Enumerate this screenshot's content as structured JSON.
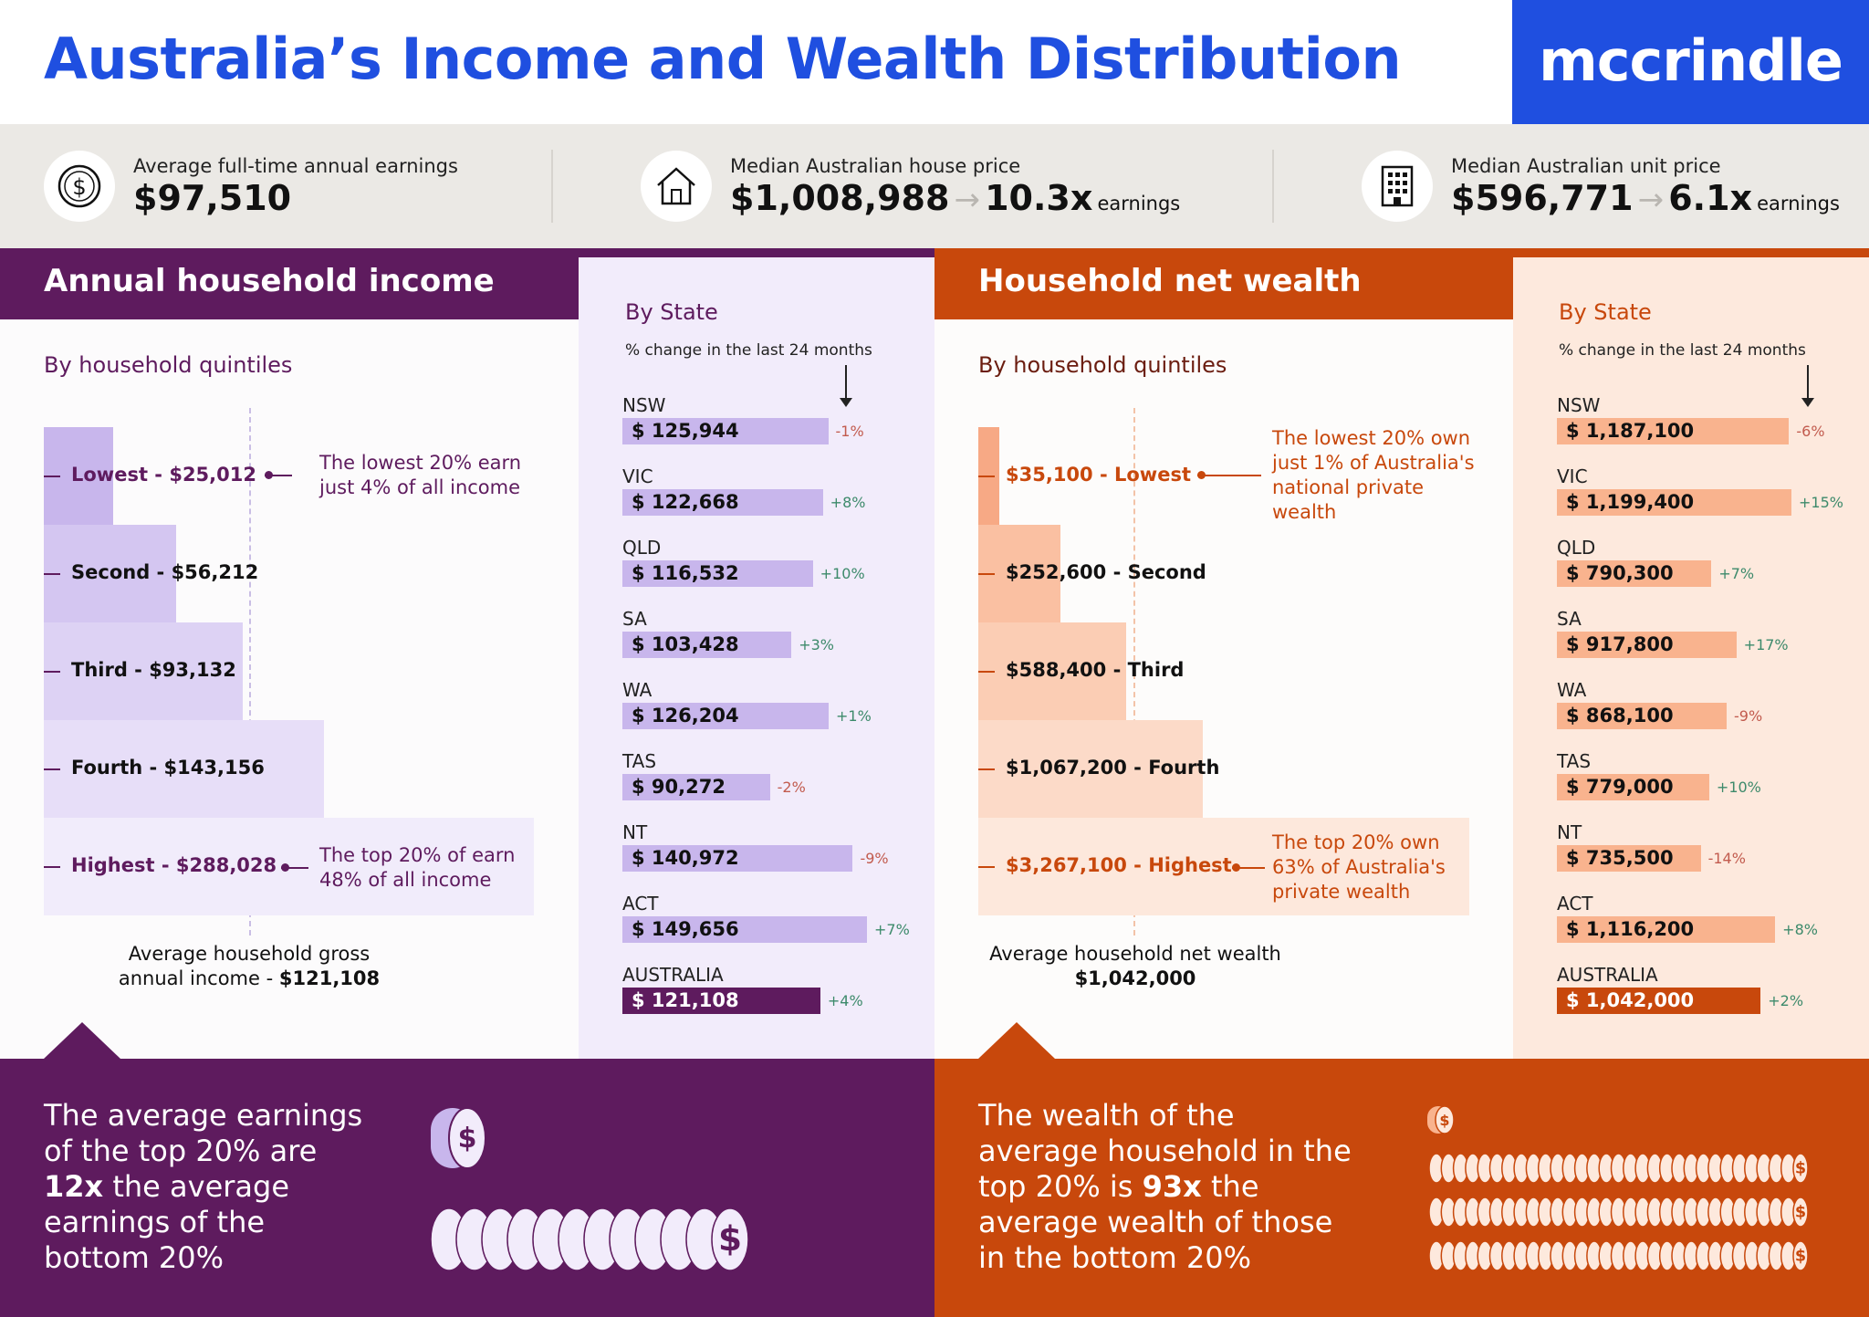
{
  "header": {
    "title": "Australia’s Income and Wealth Distribution",
    "brand": "mccrindle"
  },
  "stats": [
    {
      "icon": "dollar-coin-icon",
      "label": "Average full-time annual earnings",
      "value": "$97,510"
    },
    {
      "icon": "house-icon",
      "label": "Median Australian house price",
      "value": "$1,008,988",
      "multiplier": "10.3x",
      "suffix": "earnings"
    },
    {
      "icon": "apartment-building-icon",
      "label": "Median Australian unit price",
      "value": "$596,771",
      "multiplier": "6.1x",
      "suffix": "earnings"
    }
  ],
  "colors": {
    "purple": "#5e1b5e",
    "purple_bar": "#c8b6ec",
    "orange": "#c8480c",
    "orange_bar": "#f9b38e",
    "blue": "#1f4fe0"
  },
  "income": {
    "heading": "Annual household income",
    "subheading": "By household quintiles",
    "note_lowest": "The lowest 20% earn just 4% of all income",
    "note_highest": "The top 20% of earn 48% of all income",
    "avg_line1": "Average household gross",
    "avg_line2_prefix": "annual income - ",
    "avg_value": "$121,108",
    "by_state_title": "By State",
    "by_state_sub": "% change in the last 24 months",
    "bottom_parts": [
      "The average earnings of the top 20% are ",
      "12x",
      " the average earnings of the bottom 20%"
    ]
  },
  "wealth": {
    "heading": "Household net wealth",
    "subheading": "By household quintiles",
    "note_lowest": "The lowest 20% own just 1% of Australia's national private wealth",
    "note_highest": "The top 20% own 63% of Australia's private wealth",
    "avg_line1": "Average household net wealth",
    "avg_value": "$1,042,000",
    "by_state_title": "By State",
    "by_state_sub": "% change in the last 24 months",
    "bottom_parts": [
      "The wealth of the average household in the top 20% is ",
      "93x",
      " the average wealth of those in the bottom 20%"
    ]
  },
  "chart_data": [
    {
      "type": "bar",
      "title": "Annual household income",
      "subtitle": "By household quintiles",
      "categories": [
        "Lowest",
        "Second",
        "Third",
        "Fourth",
        "Highest"
      ],
      "labels": [
        "Lowest - $25,012",
        "Second - $56,212",
        "Third - $93,132",
        "Fourth - $143,156",
        "Highest - $288,028"
      ],
      "values": [
        25012,
        56212,
        93132,
        143156,
        288028
      ],
      "reference_line": 121108
    },
    {
      "type": "bar",
      "title": "By State",
      "subtitle": "% change in the last 24 months",
      "categories": [
        "NSW",
        "VIC",
        "QLD",
        "SA",
        "WA",
        "TAS",
        "NT",
        "ACT",
        "AUSTRALIA"
      ],
      "labels": [
        "$ 125,944",
        "$ 122,668",
        "$ 116,532",
        "$ 103,428",
        "$ 126,204",
        "$ 90,272",
        "$ 140,972",
        "$ 149,656",
        "$ 121,108"
      ],
      "values": [
        125944,
        122668,
        116532,
        103428,
        126204,
        90272,
        140972,
        149656,
        121108
      ],
      "change": [
        "-1%",
        "+8%",
        "+10%",
        "+3%",
        "+1%",
        "-2%",
        "-9%",
        "+7%",
        "+4%"
      ]
    },
    {
      "type": "bar",
      "title": "Household net wealth",
      "subtitle": "By household quintiles",
      "categories": [
        "Lowest",
        "Second",
        "Third",
        "Fourth",
        "Highest"
      ],
      "labels": [
        "$35,100 - Lowest",
        "$252,600 - Second",
        "$588,400 - Third",
        "$1,067,200 - Fourth",
        "$3,267,100 - Highest"
      ],
      "values": [
        35100,
        252600,
        588400,
        1067200,
        3267100
      ],
      "reference_line": 1042000
    },
    {
      "type": "bar",
      "title": "By State",
      "subtitle": "% change in the last 24 months",
      "categories": [
        "NSW",
        "VIC",
        "QLD",
        "SA",
        "WA",
        "TAS",
        "NT",
        "ACT",
        "AUSTRALIA"
      ],
      "labels": [
        "$ 1,187,100",
        "$ 1,199,400",
        "$ 790,300",
        "$ 917,800",
        "$ 868,100",
        "$ 779,000",
        "$ 735,500",
        "$ 1,116,200",
        "$ 1,042,000"
      ],
      "values": [
        1187100,
        1199400,
        790300,
        917800,
        868100,
        779000,
        735500,
        1116200,
        1042000
      ],
      "change": [
        "-6%",
        "+15%",
        "+7%",
        "+17%",
        "-9%",
        "+10%",
        "-14%",
        "+8%",
        "+2%"
      ]
    }
  ]
}
